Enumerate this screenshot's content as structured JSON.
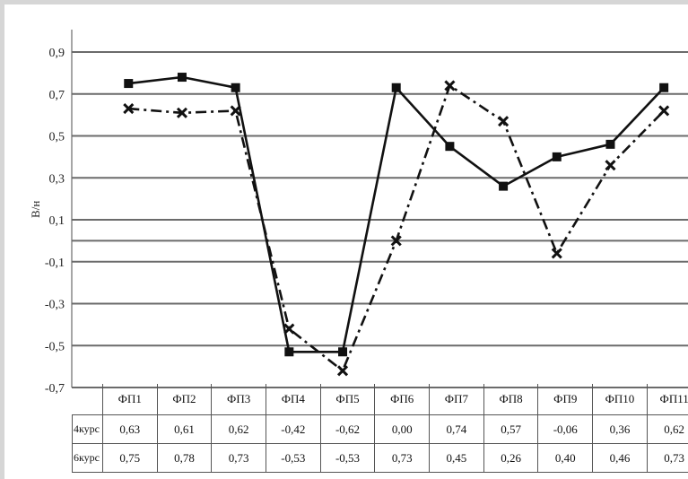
{
  "chart_data": {
    "type": "line",
    "ylabel": "В/н",
    "ylim": [
      -0.7,
      0.9
    ],
    "yticks": [
      "0,9",
      "0,7",
      "0,5",
      "0,3",
      "0,1",
      "-0,1",
      "-0,3",
      "-0,5",
      "-0,7"
    ],
    "ytick_values": [
      0.9,
      0.7,
      0.5,
      0.3,
      0.1,
      -0.1,
      -0.3,
      -0.5,
      -0.7
    ],
    "grid": true,
    "categories": [
      "ФП1",
      "ФП2",
      "ФП3",
      "ФП4",
      "ФП5",
      "ФП6",
      "ФП7",
      "ФП8",
      "ФП9",
      "ФП10",
      "ФП11"
    ],
    "series": [
      {
        "name": "4 курс",
        "style": "dash-dot",
        "marker": "x",
        "color": "#111111",
        "values": [
          0.63,
          0.61,
          0.62,
          -0.42,
          -0.62,
          0.0,
          0.74,
          0.57,
          -0.06,
          0.36,
          0.62
        ],
        "labels": [
          "0,63",
          "0,61",
          "0,62",
          "-0,42",
          "-0,62",
          "0,00",
          "0,74",
          "0,57",
          "-0,06",
          "0,36",
          "0,62"
        ]
      },
      {
        "name": "6 курс",
        "style": "solid",
        "marker": "square",
        "color": "#111111",
        "values": [
          0.75,
          0.78,
          0.73,
          -0.53,
          -0.53,
          0.73,
          0.45,
          0.26,
          0.4,
          0.46,
          0.73
        ],
        "labels": [
          "0,75",
          "0,78",
          "0,73",
          "-0,53",
          "-0,53",
          "0,73",
          "0,45",
          "0,26",
          "0,40",
          "0,46",
          "0,73"
        ]
      }
    ]
  }
}
